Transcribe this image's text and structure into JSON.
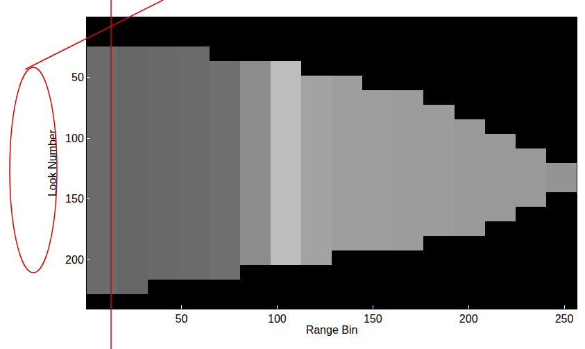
{
  "chart_data": {
    "type": "heatmap",
    "x_label": "Range Bin",
    "y_label": "Look Number",
    "x": [
      8.5,
      24.5,
      40.5,
      56.5,
      72.5,
      88.5,
      104.5,
      120.5,
      136.5,
      152.5,
      168.5,
      184.5,
      200.5,
      216.5,
      232.5,
      248.5
    ],
    "y": [
      6.5,
      18.5,
      30.5,
      42.5,
      54.5,
      66.5,
      78.5,
      90.5,
      102.5,
      114.5,
      126.5,
      138.5,
      150.5,
      162.5,
      174.5,
      186.5,
      198.5,
      210.5,
      222.5,
      234.5
    ],
    "z": [
      [
        0,
        0,
        0,
        0,
        0,
        0,
        0,
        0,
        0,
        0,
        0,
        0,
        0,
        0,
        0,
        0
      ],
      [
        0,
        0,
        0,
        0,
        0,
        0,
        0,
        0,
        0,
        0,
        0,
        0,
        0,
        0,
        0,
        0
      ],
      [
        0.42,
        0.4,
        0.41,
        0.42,
        0,
        0,
        0,
        0,
        0,
        0,
        0,
        0,
        0,
        0,
        0,
        0
      ],
      [
        0.42,
        0.4,
        0.41,
        0.42,
        0.44,
        0.55,
        0.74,
        0,
        0,
        0,
        0,
        0,
        0,
        0,
        0,
        0
      ],
      [
        0.42,
        0.4,
        0.41,
        0.42,
        0.44,
        0.55,
        0.74,
        0.64,
        0.62,
        0,
        0,
        0,
        0,
        0,
        0,
        0
      ],
      [
        0.42,
        0.4,
        0.41,
        0.42,
        0.44,
        0.55,
        0.74,
        0.64,
        0.62,
        0.62,
        0.61,
        0,
        0,
        0,
        0,
        0
      ],
      [
        0.42,
        0.4,
        0.41,
        0.42,
        0.44,
        0.55,
        0.74,
        0.64,
        0.62,
        0.62,
        0.61,
        0.61,
        0,
        0,
        0,
        0
      ],
      [
        0.42,
        0.4,
        0.41,
        0.42,
        0.44,
        0.55,
        0.74,
        0.64,
        0.62,
        0.62,
        0.61,
        0.61,
        0.6,
        0,
        0,
        0
      ],
      [
        0.42,
        0.4,
        0.41,
        0.42,
        0.44,
        0.55,
        0.74,
        0.64,
        0.62,
        0.62,
        0.61,
        0.61,
        0.6,
        0.6,
        0,
        0
      ],
      [
        0.42,
        0.4,
        0.41,
        0.42,
        0.44,
        0.55,
        0.74,
        0.64,
        0.62,
        0.62,
        0.61,
        0.61,
        0.6,
        0.6,
        0.6,
        0
      ],
      [
        0.42,
        0.4,
        0.41,
        0.42,
        0.44,
        0.55,
        0.74,
        0.64,
        0.62,
        0.62,
        0.61,
        0.61,
        0.6,
        0.6,
        0.6,
        0.58
      ],
      [
        0.42,
        0.4,
        0.41,
        0.42,
        0.44,
        0.55,
        0.74,
        0.64,
        0.62,
        0.62,
        0.61,
        0.61,
        0.6,
        0.6,
        0.6,
        0.58
      ],
      [
        0.42,
        0.4,
        0.41,
        0.42,
        0.44,
        0.55,
        0.74,
        0.64,
        0.62,
        0.62,
        0.61,
        0.61,
        0.6,
        0.6,
        0.6,
        0
      ],
      [
        0.42,
        0.4,
        0.41,
        0.42,
        0.44,
        0.55,
        0.74,
        0.64,
        0.62,
        0.62,
        0.61,
        0.61,
        0.6,
        0.6,
        0,
        0
      ],
      [
        0.42,
        0.4,
        0.41,
        0.42,
        0.44,
        0.55,
        0.74,
        0.64,
        0.62,
        0.62,
        0.61,
        0.61,
        0.6,
        0,
        0,
        0
      ],
      [
        0.42,
        0.4,
        0.41,
        0.42,
        0.44,
        0.55,
        0.74,
        0.64,
        0.62,
        0.62,
        0.61,
        0,
        0,
        0,
        0,
        0
      ],
      [
        0.42,
        0.4,
        0.41,
        0.42,
        0.44,
        0.55,
        0.74,
        0.64,
        0,
        0,
        0,
        0,
        0,
        0,
        0,
        0
      ],
      [
        0.42,
        0.4,
        0.41,
        0.42,
        0.44,
        0,
        0,
        0,
        0,
        0,
        0,
        0,
        0,
        0,
        0,
        0
      ],
      [
        0.42,
        0.4,
        0,
        0,
        0,
        0,
        0,
        0,
        0,
        0,
        0,
        0,
        0,
        0,
        0,
        0
      ],
      [
        0,
        0,
        0,
        0,
        0,
        0,
        0,
        0,
        0,
        0,
        0,
        0,
        0,
        0,
        0,
        0
      ]
    ],
    "zlim": [
      0,
      1
    ],
    "xlim": [
      0.5,
      256.5
    ],
    "ylim": [
      240.5,
      0.5
    ],
    "xticks": [
      50,
      100,
      150,
      200,
      250
    ],
    "yticks": [
      50,
      100,
      150,
      200
    ],
    "grid": false
  }
}
